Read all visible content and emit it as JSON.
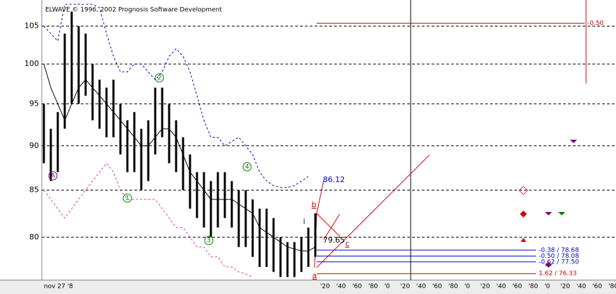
{
  "chart_data": {
    "type": "range-bar",
    "title": "ELWAVE © 1996, 2002 Prognosis Software Development",
    "yscale": "log",
    "ylim": [
      75.7,
      108.6
    ],
    "yticks": [
      80,
      85,
      90,
      95,
      100,
      105
    ],
    "grid": true,
    "start_label": "nov 27 '8",
    "xtick_labels": [
      "'20",
      "'40",
      "'60",
      "'80",
      "'0",
      "'20",
      "'40",
      "'60",
      "'80",
      "'0",
      "'20",
      "'40",
      "'60",
      "'80",
      "'0",
      "'20",
      "'40",
      "'60",
      "'80"
    ],
    "price": {
      "color": "#000000",
      "high": [
        95,
        92,
        94,
        104,
        107,
        105,
        104,
        100,
        98,
        97,
        98,
        95,
        93,
        94,
        92,
        93,
        97,
        97,
        95,
        93,
        91,
        89,
        87,
        87,
        86,
        87,
        87,
        86,
        85,
        85,
        84,
        83,
        83,
        82,
        80,
        79.5,
        79.5,
        80,
        81,
        82.5
      ],
      "low": [
        88,
        86,
        87,
        92,
        95,
        95,
        96,
        93,
        92,
        91,
        91,
        89,
        87,
        87,
        85,
        86,
        89,
        91,
        88,
        87,
        85,
        83,
        82,
        81,
        80,
        81,
        82,
        81,
        79,
        79,
        78,
        77,
        77,
        76.5,
        76,
        76,
        76,
        76.5,
        77,
        78
      ]
    },
    "lines": [
      {
        "color": "#000000",
        "dash": false,
        "values": [
          100,
          97,
          95,
          93,
          95,
          97,
          98,
          97,
          96,
          95,
          94,
          93,
          92,
          91,
          90,
          90,
          91,
          92,
          92,
          91,
          89,
          87,
          86,
          85,
          84,
          84,
          84,
          84,
          83.5,
          83,
          82.5,
          81,
          80.5,
          80,
          79.5,
          79,
          78.8,
          78.6,
          78.6,
          79
        ]
      },
      {
        "color": "#0000cc",
        "dash": true,
        "values": [
          105,
          104,
          103,
          108,
          108,
          108,
          108,
          108,
          107.5,
          104,
          101,
          99,
          99,
          100,
          100,
          99,
          98,
          99,
          101,
          102,
          101,
          99,
          96,
          93,
          91,
          91,
          90,
          90.5,
          91,
          90,
          89,
          87,
          86,
          85.5,
          85.3,
          85.3,
          85.5,
          86,
          86.5,
          null
        ]
      },
      {
        "color": "#ee3399",
        "dash": true,
        "values": [
          85,
          84,
          83,
          82,
          83,
          84,
          85,
          86,
          87,
          88,
          87,
          85,
          84,
          84,
          84,
          84,
          84,
          83,
          82,
          81,
          81,
          80,
          79,
          79,
          78,
          78,
          77,
          77,
          76.5,
          76.3,
          76,
          null,
          null,
          null,
          null,
          null,
          null,
          null,
          null,
          null
        ]
      }
    ],
    "waves": [
      {
        "label": "A",
        "color": "#800080"
      },
      {
        "label": "1",
        "color": "#008000"
      },
      {
        "label": "2",
        "color": "#008000"
      },
      {
        "label": "3",
        "color": "#008000"
      },
      {
        "label": "4",
        "color": "#008000"
      }
    ],
    "letters": [
      {
        "label": "i",
        "color": "#0000cc"
      },
      {
        "label": "b",
        "color": "#cc0000"
      },
      {
        "label": "c",
        "color": "#cc0000"
      },
      {
        "label": "a",
        "color": "#cc0000"
      }
    ],
    "price_labels": [
      {
        "value": 86.12,
        "label": "86.12",
        "color": "#0000cc"
      },
      {
        "value": 79.65,
        "label": "79.65",
        "color": "#000000"
      }
    ],
    "levels": [
      {
        "value": 78.68,
        "label": "-0.38 / 78.68",
        "color": "#0000cc"
      },
      {
        "value": 78.08,
        "label": "-0.50 / 78.08",
        "color": "#0000cc"
      },
      {
        "value": 77.5,
        "label": "-0.62 / 77.50",
        "color": "#0000cc"
      },
      {
        "value": 76.33,
        "label": "1.62 / 76.33",
        "color": "#cc0000"
      },
      {
        "value": 105.4,
        "label": "-0.50",
        "color": "#cc0000"
      }
    ]
  }
}
